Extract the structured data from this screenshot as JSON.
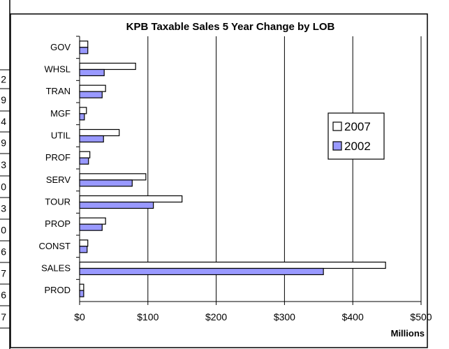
{
  "page": {
    "clipped_left_digits": [
      "2",
      "9",
      "4",
      "9",
      "3",
      "0",
      "3",
      "0",
      "6",
      "7",
      "6",
      "7"
    ]
  },
  "chart_data": {
    "type": "bar",
    "orientation": "horizontal",
    "title": "KPB Taxable Sales 5 Year Change by LOB",
    "xlabel": "Millions",
    "ylabel": "",
    "categories": [
      "GOV",
      "WHSL",
      "TRAN",
      "MGF",
      "UTIL",
      "PROF",
      "SERV",
      "TOUR",
      "PROP",
      "CONST",
      "SALES",
      "PROD"
    ],
    "series": [
      {
        "name": "2007",
        "color": "#ffffff",
        "values": [
          12,
          82,
          38,
          10,
          58,
          15,
          97,
          150,
          38,
          12,
          448,
          6
        ]
      },
      {
        "name": "2002",
        "color": "#9999ff",
        "values": [
          12,
          36,
          33,
          7,
          35,
          13,
          77,
          108,
          33,
          11,
          357,
          6
        ]
      }
    ],
    "xlim": [
      0,
      500
    ],
    "xticks": [
      0,
      100,
      200,
      300,
      400,
      500
    ],
    "xtick_labels": [
      "$0",
      "$100",
      "$200",
      "$300",
      "$400",
      "$500"
    ],
    "grid": "vertical",
    "legend_position": "right",
    "colors": {
      "plot_background": "#ffffff",
      "grid": "#000000",
      "series_outline": "#000000"
    }
  }
}
